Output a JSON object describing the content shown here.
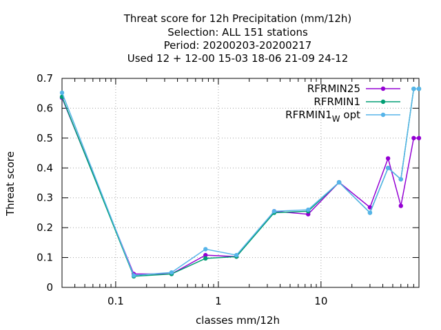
{
  "chart_data": {
    "type": "line",
    "title_lines": [
      "Threat score  for 12h Precipitation (mm/12h)",
      "Selection: ALL    151 stations",
      "Period: 20200203-20200217",
      "Used  12 + 12-00 15-03 18-06 21-09 24-12"
    ],
    "xlabel": "classes mm/12h",
    "ylabel": "Threat score",
    "x_scale": "log",
    "xlim": [
      0.03,
      90
    ],
    "ylim": [
      0,
      0.7
    ],
    "x_ticks": [
      {
        "value": 0.1,
        "label": "0.1"
      },
      {
        "value": 1,
        "label": "1"
      },
      {
        "value": 10,
        "label": "10"
      }
    ],
    "y_ticks": [
      {
        "value": 0,
        "label": "0"
      },
      {
        "value": 0.1,
        "label": "0.1"
      },
      {
        "value": 0.2,
        "label": "0.2"
      },
      {
        "value": 0.3,
        "label": "0.3"
      },
      {
        "value": 0.4,
        "label": "0.4"
      },
      {
        "value": 0.5,
        "label": "0.5"
      },
      {
        "value": 0.6,
        "label": "0.6"
      },
      {
        "value": 0.7,
        "label": "0.7"
      }
    ],
    "grid": true,
    "legend_position": "top-right",
    "x": [
      0.03,
      0.15,
      0.35,
      0.75,
      1.5,
      3.5,
      7.5,
      15,
      30,
      45,
      60,
      80,
      90
    ],
    "series": [
      {
        "name": "RFRMIN25",
        "color": "#9400d3",
        "values": [
          0.635,
          0.045,
          0.045,
          0.108,
          0.103,
          0.255,
          0.245,
          0.352,
          0.268,
          0.432,
          0.273,
          0.5,
          0.5
        ]
      },
      {
        "name": "RFRMIN1",
        "color": "#009e73",
        "values": [
          0.638,
          0.037,
          0.045,
          0.097,
          0.103,
          0.25,
          0.255,
          0.352,
          0.25,
          0.4,
          0.362,
          0.665,
          0.665
        ]
      },
      {
        "name": "RFRMIN1",
        "name_subscript": "W",
        "name_suffix": "opt",
        "color": "#56b4e9",
        "values": [
          0.652,
          0.04,
          0.05,
          0.128,
          0.108,
          0.255,
          0.26,
          0.352,
          0.25,
          0.4,
          0.362,
          0.665,
          0.665
        ]
      }
    ]
  }
}
